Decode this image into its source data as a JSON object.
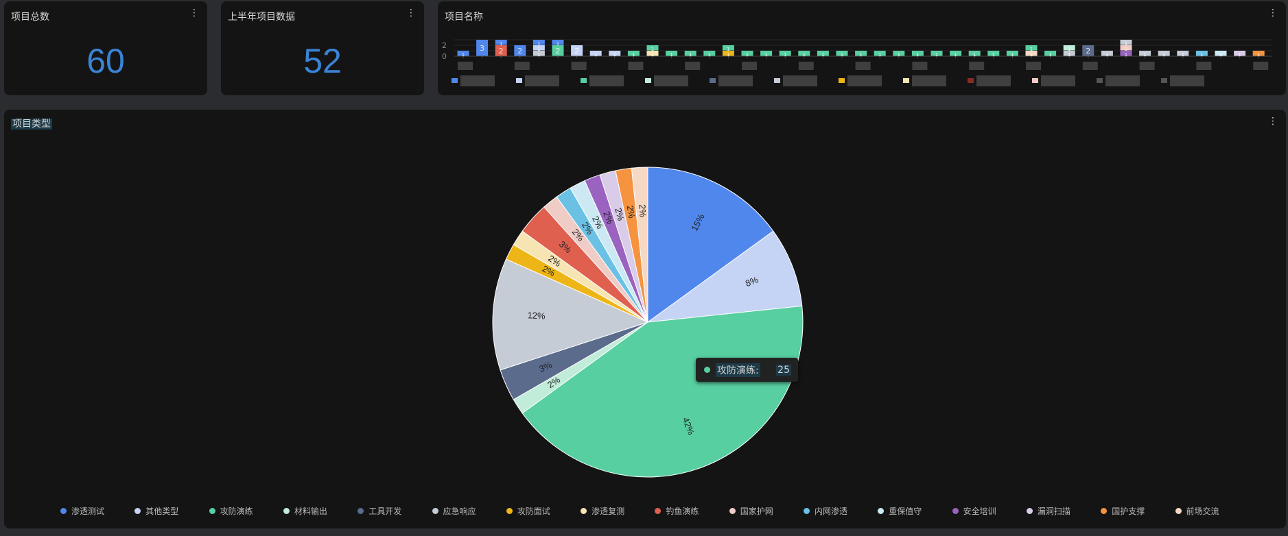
{
  "cards": {
    "total": {
      "title": "项目总数",
      "value": "60"
    },
    "half_year": {
      "title": "上半年项目数据",
      "value": "52"
    },
    "project_names": {
      "title": "项目名称"
    },
    "project_types": {
      "title": "项目类型"
    }
  },
  "menu_icon": "⋮",
  "tooltip": {
    "label": "攻防演练:",
    "value": "25",
    "color": "#58cfa1"
  },
  "colors": {
    "渗透测试": "#5087ec",
    "其他类型": "#c5d3f5",
    "攻防演练": "#58cfa1",
    "材料输出": "#c1ecd9",
    "工具开发": "#5a6b8c",
    "应急响应": "#c6ccd6",
    "攻防面试": "#eeb517",
    "渗透复测": "#f6e4b3",
    "钓鱼演练": "#e0604f",
    "国家护网": "#f0ccc7",
    "内网渗透": "#6bc1e4",
    "重保值守": "#cce9f3",
    "安全培训": "#9a63c0",
    "漏洞扫描": "#d8cce8",
    "国护支撑": "#f5933f",
    "前场交流": "#f6d9c4"
  },
  "chart_data": [
    {
      "type": "pie",
      "title": "项目类型",
      "legend_position": "bottom",
      "categories": [
        "渗透测试",
        "其他类型",
        "攻防演练",
        "材料输出",
        "工具开发",
        "应急响应",
        "攻防面试",
        "渗透复测",
        "钓鱼演练",
        "国家护网",
        "内网渗透",
        "重保值守",
        "安全培训",
        "漏洞扫描",
        "国护支撑",
        "前场交流"
      ],
      "values": [
        9,
        5,
        25,
        1,
        2,
        7,
        1,
        1,
        2,
        1,
        1,
        1,
        1,
        1,
        1,
        1
      ],
      "labels": [
        "15%",
        "8%",
        "42%",
        "2%",
        "3%",
        "12%",
        "2%",
        "2%",
        "3%",
        "2%",
        "2%",
        "2%",
        "2%",
        "2%",
        "2%",
        "2%"
      ]
    },
    {
      "type": "bar",
      "stacked": true,
      "title": "项目名称",
      "yticks": [
        "0",
        "2"
      ],
      "ylim": [
        0,
        3
      ],
      "grid": true,
      "bars": [
        [
          [
            "渗透测试",
            1
          ]
        ],
        [
          [
            "渗透测试",
            3
          ]
        ],
        [
          [
            "钓鱼演练",
            2
          ],
          [
            "渗透测试",
            1
          ]
        ],
        [
          [
            "渗透测试",
            2
          ]
        ],
        [
          [
            "应急响应",
            1
          ],
          [
            "其他类型",
            1
          ],
          [
            "渗透测试",
            1
          ]
        ],
        [
          [
            "攻防演练",
            2
          ],
          [
            "渗透测试",
            1
          ]
        ],
        [
          [
            "其他类型",
            2
          ]
        ],
        [
          [
            "其他类型",
            1
          ]
        ],
        [
          [
            "其他类型",
            1
          ]
        ],
        [
          [
            "攻防演练",
            1
          ]
        ],
        [
          [
            "渗透复测",
            1
          ],
          [
            "攻防演练",
            1
          ]
        ],
        [
          [
            "攻防演练",
            1
          ]
        ],
        [
          [
            "攻防演练",
            1
          ]
        ],
        [
          [
            "攻防演练",
            1
          ]
        ],
        [
          [
            "攻防面试",
            1
          ],
          [
            "攻防演练",
            1
          ]
        ],
        [
          [
            "攻防演练",
            1
          ]
        ],
        [
          [
            "攻防演练",
            1
          ]
        ],
        [
          [
            "攻防演练",
            1
          ]
        ],
        [
          [
            "攻防演练",
            1
          ]
        ],
        [
          [
            "攻防演练",
            1
          ]
        ],
        [
          [
            "攻防演练",
            1
          ]
        ],
        [
          [
            "攻防演练",
            1
          ]
        ],
        [
          [
            "攻防演练",
            1
          ]
        ],
        [
          [
            "攻防演练",
            1
          ]
        ],
        [
          [
            "攻防演练",
            1
          ]
        ],
        [
          [
            "攻防演练",
            1
          ]
        ],
        [
          [
            "攻防演练",
            1
          ]
        ],
        [
          [
            "攻防演练",
            1
          ]
        ],
        [
          [
            "攻防演练",
            1
          ]
        ],
        [
          [
            "攻防演练",
            1
          ]
        ],
        [
          [
            "前场交流",
            1
          ],
          [
            "攻防演练",
            1
          ]
        ],
        [
          [
            "攻防演练",
            1
          ]
        ],
        [
          [
            "应急响应",
            1
          ],
          [
            "材料输出",
            1
          ]
        ],
        [
          [
            "工具开发",
            2
          ]
        ],
        [
          [
            "应急响应",
            1
          ]
        ],
        [
          [
            "安全培训",
            1
          ],
          [
            "国家护网",
            1
          ],
          [
            "应急响应",
            1
          ]
        ],
        [
          [
            "应急响应",
            1
          ]
        ],
        [
          [
            "应急响应",
            1
          ]
        ],
        [
          [
            "应急响应",
            1
          ]
        ],
        [
          [
            "内网渗透",
            1
          ]
        ],
        [
          [
            "重保值守",
            1
          ]
        ],
        [
          [
            "漏洞扫描",
            1
          ]
        ],
        [
          [
            "国护支撑",
            1
          ]
        ]
      ]
    }
  ]
}
